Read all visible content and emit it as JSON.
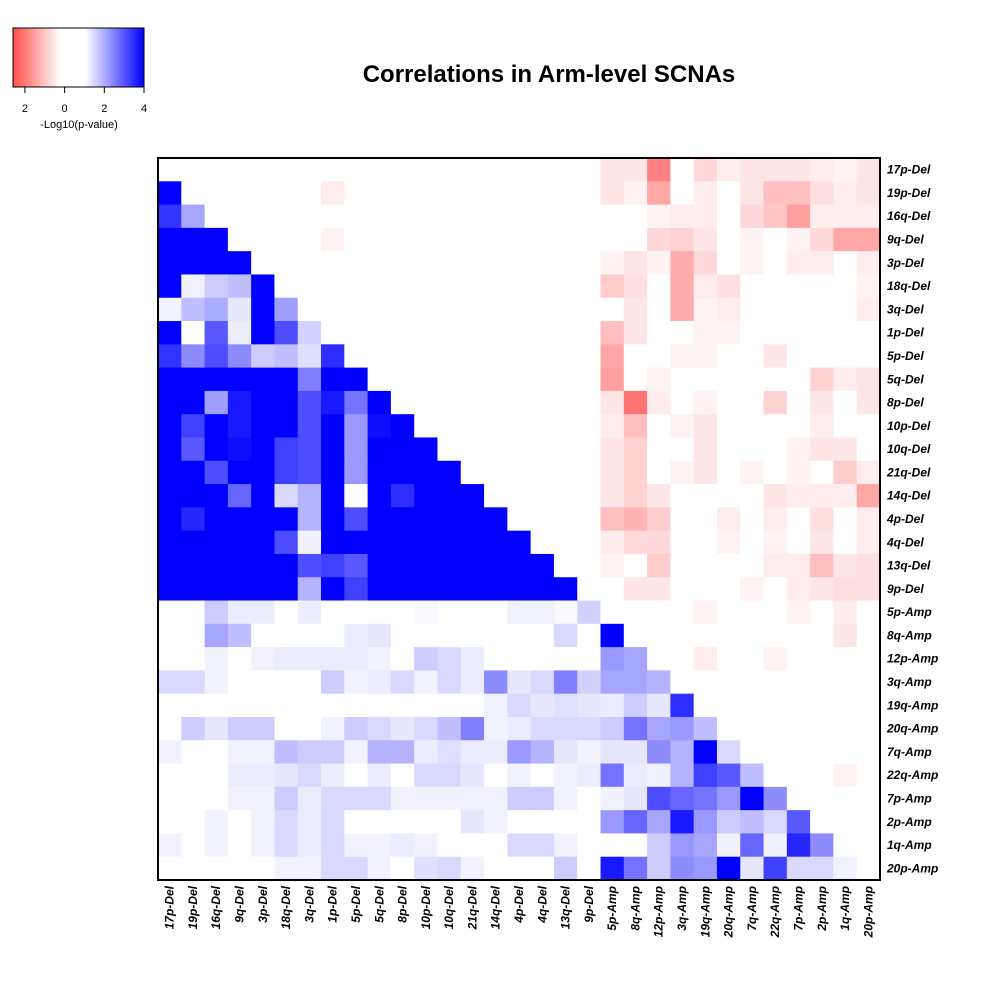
{
  "chart_data": {
    "type": "heatmap",
    "title": "Correlations in Arm-level SCNAs",
    "legend": {
      "title": "-Log10(p-value)",
      "ticks": [
        "2",
        "0",
        "2",
        "4"
      ],
      "scale_range": [
        -4,
        4
      ],
      "colors": {
        "negative": "#ff0000",
        "zero": "#ffffff",
        "positive": "#0000ff"
      }
    },
    "row_labels": [
      "17p-Del",
      "19p-Del",
      "16q-Del",
      "9q-Del",
      "3p-Del",
      "18q-Del",
      "3q-Del",
      "1p-Del",
      "5p-Del",
      "5q-Del",
      "8p-Del",
      "10p-Del",
      "10q-Del",
      "21q-Del",
      "14q-Del",
      "4p-Del",
      "4q-Del",
      "13q-Del",
      "9p-Del",
      "5p-Amp",
      "8q-Amp",
      "12p-Amp",
      "3q-Amp",
      "19q-Amp",
      "20q-Amp",
      "7q-Amp",
      "22q-Amp",
      "7p-Amp",
      "2p-Amp",
      "1q-Amp",
      "20p-Amp"
    ],
    "col_labels": [
      "17p-Del",
      "19p-Del",
      "16q-Del",
      "9q-Del",
      "3p-Del",
      "18q-Del",
      "3q-Del",
      "1p-Del",
      "5p-Del",
      "5q-Del",
      "8p-Del",
      "10p-Del",
      "10q-Del",
      "21q-Del",
      "14q-Del",
      "4p-Del",
      "4q-Del",
      "13q-Del",
      "9p-Del",
      "5p-Amp",
      "8q-Amp",
      "12p-Amp",
      "3q-Amp",
      "19q-Amp",
      "20q-Amp",
      "7q-Amp",
      "22q-Amp",
      "7p-Amp",
      "2p-Amp",
      "1q-Amp",
      "20p-Amp"
    ],
    "values": [
      [
        0,
        0,
        0,
        0,
        0,
        0,
        0,
        0,
        0,
        0,
        0,
        0,
        0,
        0,
        0,
        0,
        0,
        0,
        0,
        -0.4,
        -0.4,
        -2,
        0,
        -0.6,
        -0.3,
        -0.4,
        -0.4,
        -0.4,
        -0.3,
        -0.2,
        -0.4
      ],
      [
        4,
        0,
        0,
        0,
        0,
        0,
        0,
        -0.3,
        0,
        0,
        0,
        0,
        0,
        0,
        0,
        0,
        0,
        0,
        0,
        -0.4,
        -0.2,
        -1.4,
        0,
        -0.3,
        0,
        -0.4,
        -1,
        -1,
        -0.5,
        -0.3,
        -0.4
      ],
      [
        3.2,
        1.4,
        0,
        0,
        0,
        0,
        0,
        0,
        0,
        0,
        0,
        0,
        0,
        0,
        0,
        0,
        0,
        0,
        0,
        0,
        0,
        -0.2,
        -0.3,
        -0.3,
        0,
        -0.6,
        -0.9,
        -1.5,
        -0.3,
        -0.3,
        -0.3
      ],
      [
        4,
        4,
        4,
        0,
        0,
        0,
        0,
        -0.2,
        0,
        0,
        0,
        0,
        0,
        0,
        0,
        0,
        0,
        0,
        0,
        0,
        0,
        -0.6,
        -0.7,
        -0.4,
        0,
        -0.2,
        0,
        -0.2,
        -0.6,
        -1.4,
        -1.4
      ],
      [
        4,
        4,
        4,
        4,
        0,
        0,
        0,
        0,
        0,
        0,
        0,
        0,
        0,
        0,
        0,
        0,
        0,
        0,
        0,
        -0.2,
        -0.4,
        -0.2,
        -1.3,
        -0.6,
        0,
        -0.2,
        0,
        -0.3,
        -0.3,
        0,
        -0.3
      ],
      [
        4,
        0.2,
        0.8,
        1,
        4,
        0,
        0,
        0,
        0,
        0,
        0,
        0,
        0,
        0,
        0,
        0,
        0,
        0,
        0,
        -0.8,
        -0.5,
        0,
        -1.3,
        -0.3,
        -0.5,
        0,
        0,
        0,
        0,
        0,
        -0.2
      ],
      [
        0.2,
        1,
        1.3,
        0.4,
        4,
        1.5,
        0,
        0,
        0,
        0,
        0,
        0,
        0,
        0,
        0,
        0,
        0,
        0,
        0,
        0,
        -0.4,
        0,
        -1.3,
        -0.2,
        -0.3,
        0,
        0,
        0,
        0,
        0,
        -0.3
      ],
      [
        4,
        0,
        2.6,
        0.3,
        4,
        2.8,
        0.7,
        0,
        0,
        0,
        0,
        0,
        0,
        0,
        0,
        0,
        0,
        0,
        0,
        -1,
        -0.4,
        0,
        0,
        -0.2,
        -0.2,
        0,
        0,
        0,
        0,
        0,
        0
      ],
      [
        3.2,
        1.8,
        2.8,
        1.8,
        0.8,
        1,
        0.5,
        3.3,
        0,
        0,
        0,
        0,
        0,
        0,
        0,
        0,
        0,
        0,
        0,
        -1.4,
        0,
        0,
        -0.2,
        -0.2,
        0,
        0,
        -0.4,
        0,
        0,
        0,
        0
      ],
      [
        4,
        4,
        4,
        4,
        4,
        4,
        2,
        4,
        4,
        0,
        0,
        0,
        0,
        0,
        0,
        0,
        0,
        0,
        0,
        -1.5,
        0,
        -0.2,
        0,
        0,
        0,
        0,
        0,
        0,
        -0.7,
        -0.3,
        -0.4
      ],
      [
        4,
        4,
        1.5,
        3.6,
        4,
        4,
        2.8,
        3.6,
        2.2,
        4,
        0,
        0,
        0,
        0,
        0,
        0,
        0,
        0,
        0,
        -0.4,
        -2.2,
        -0.3,
        0,
        -0.2,
        0,
        0,
        -0.7,
        0,
        -0.4,
        0,
        -0.4
      ],
      [
        4,
        3,
        4,
        3.6,
        4,
        4,
        2.8,
        4,
        1.6,
        3.8,
        4,
        0,
        0,
        0,
        0,
        0,
        0,
        0,
        0,
        -0.3,
        -1,
        0,
        -0.2,
        -0.4,
        0,
        0,
        0,
        0,
        -0.3,
        0,
        0
      ],
      [
        4,
        2.6,
        4,
        3.8,
        4,
        3,
        2.8,
        4,
        1.6,
        4,
        4,
        4,
        0,
        0,
        0,
        0,
        0,
        0,
        0,
        -0.4,
        -0.7,
        0,
        0,
        -0.4,
        0,
        0,
        0,
        -0.2,
        -0.4,
        -0.4,
        0
      ],
      [
        4,
        4,
        2.8,
        4,
        4,
        3,
        2.8,
        4,
        1.6,
        4,
        4,
        4,
        4,
        0,
        0,
        0,
        0,
        0,
        0,
        -0.4,
        -0.7,
        0,
        -0.2,
        -0.4,
        0,
        -0.2,
        0,
        -0.2,
        0,
        -0.8,
        -0.3
      ],
      [
        4,
        4,
        4,
        2.4,
        4,
        0.6,
        1.2,
        4,
        0,
        4,
        3.3,
        4,
        4,
        4,
        0,
        0,
        0,
        0,
        0,
        -0.4,
        -0.7,
        -0.4,
        0,
        0,
        0,
        0,
        -0.4,
        -0.3,
        -0.3,
        -0.3,
        -1.4
      ],
      [
        4,
        3.4,
        4,
        4,
        4,
        4,
        1.2,
        4,
        2.8,
        4,
        4,
        4,
        4,
        4,
        4,
        0,
        0,
        0,
        0,
        -1,
        -1.2,
        -0.8,
        0,
        0,
        -0.3,
        0,
        -0.3,
        0,
        -0.5,
        0,
        -0.3
      ],
      [
        4,
        4,
        4,
        4,
        4,
        2.8,
        0.2,
        4,
        4,
        4,
        4,
        4,
        4,
        4,
        4,
        4,
        0,
        0,
        0,
        -0.3,
        -0.6,
        -0.6,
        0,
        0,
        -0.2,
        0,
        -0.2,
        0,
        -0.4,
        0,
        -0.3
      ],
      [
        4,
        4,
        4,
        4,
        4,
        4,
        2.8,
        3,
        2.6,
        4,
        4,
        4,
        4,
        4,
        4,
        4,
        4,
        0,
        0,
        -0.2,
        0,
        -0.8,
        0,
        0,
        0,
        0,
        -0.3,
        -0.3,
        -1,
        -0.4,
        -0.5
      ],
      [
        4,
        4,
        4,
        4,
        4,
        4,
        1.2,
        4,
        3,
        4,
        4,
        4,
        4,
        4,
        4,
        4,
        4,
        4,
        0,
        0,
        -0.4,
        -0.4,
        0,
        0,
        0,
        -0.2,
        0,
        -0.3,
        -0.4,
        -0.5,
        -0.5
      ],
      [
        0,
        0,
        0.8,
        0.3,
        0.3,
        0,
        0.3,
        0,
        0,
        0,
        0,
        0.1,
        0,
        0,
        0,
        0.2,
        0.2,
        0.1,
        0.7,
        0,
        0,
        0,
        0,
        -0.2,
        0,
        0,
        0,
        -0.2,
        0,
        -0.3,
        0
      ],
      [
        0,
        0,
        1.4,
        1,
        0,
        0,
        0,
        0,
        0.3,
        0.4,
        0,
        0,
        0,
        0,
        0,
        0,
        0,
        0.6,
        0,
        4,
        0,
        0,
        0,
        0,
        0,
        0,
        0,
        0,
        0,
        -0.4,
        0
      ],
      [
        0,
        0,
        0.2,
        0,
        0.2,
        0.3,
        0.3,
        0.3,
        0.3,
        0.2,
        0,
        0.8,
        0.6,
        0.3,
        0,
        0,
        0,
        0,
        0,
        1.6,
        1.4,
        0,
        0,
        -0.3,
        0,
        0,
        -0.2,
        0,
        0,
        0,
        0
      ],
      [
        0.6,
        0.6,
        0.2,
        0,
        0,
        0,
        0,
        0.8,
        0.2,
        0.3,
        0.6,
        0.2,
        0.6,
        0.3,
        1.8,
        0.4,
        0.6,
        2,
        0.7,
        1.4,
        1.4,
        1.2,
        0,
        0,
        0,
        0,
        0,
        0,
        0,
        0,
        0
      ],
      [
        0,
        0,
        0,
        0,
        0,
        0,
        0,
        0,
        0,
        0,
        0,
        0,
        0,
        0,
        0.2,
        0.6,
        0.4,
        0.5,
        0.4,
        0.3,
        0.8,
        0.4,
        3.3,
        0,
        0,
        0,
        0,
        0,
        0,
        0,
        0
      ],
      [
        0,
        0.8,
        0.4,
        0.8,
        0.8,
        0,
        0,
        0.2,
        0.8,
        0.6,
        0.4,
        0.6,
        1,
        2,
        0.2,
        0.3,
        0.6,
        0.6,
        0.6,
        0.8,
        2.2,
        1.4,
        1.6,
        1,
        0,
        0,
        0,
        0,
        0,
        0,
        0
      ],
      [
        0.2,
        0,
        0,
        0.2,
        0.2,
        1,
        0.8,
        0.8,
        0.2,
        1.2,
        1.2,
        0.3,
        0.5,
        0.3,
        0.3,
        1.6,
        1.2,
        0.4,
        0.2,
        0.4,
        0.4,
        1.8,
        1.2,
        4,
        0.6,
        0,
        0,
        0,
        0,
        0,
        0
      ],
      [
        0,
        0,
        0,
        0.3,
        0.3,
        0.4,
        0.6,
        0.3,
        0,
        0.3,
        0,
        0.6,
        0.6,
        0.4,
        0,
        0.2,
        0,
        0.2,
        0.3,
        2.2,
        0.3,
        0.2,
        1.2,
        3,
        2.6,
        1,
        0,
        0,
        0,
        -0.2,
        0
      ],
      [
        0,
        0,
        0,
        0.2,
        0.2,
        0.8,
        0.3,
        0.6,
        0.6,
        0.6,
        0.2,
        0.2,
        0.2,
        0.2,
        0.2,
        0.8,
        0.8,
        0.2,
        0,
        0.2,
        0.4,
        2.8,
        2.4,
        2.2,
        1.6,
        4,
        1.8,
        0,
        0,
        0,
        0
      ],
      [
        0,
        0,
        0.2,
        0,
        0.2,
        0.6,
        0.3,
        0.6,
        0,
        0,
        0,
        0,
        0,
        0.4,
        0.2,
        0,
        0,
        0,
        0,
        1.6,
        2.4,
        1.4,
        3.6,
        1.6,
        0.8,
        1,
        0.6,
        2.6,
        0,
        0,
        0
      ],
      [
        0.2,
        0,
        0.2,
        0,
        0.2,
        0.6,
        0.3,
        0.6,
        0.2,
        0.2,
        0.3,
        0.2,
        0,
        0,
        0,
        0.6,
        0.6,
        0.2,
        0,
        0,
        0,
        0.8,
        1.6,
        1.4,
        0.2,
        2.4,
        0.2,
        3.4,
        1.8,
        0,
        0
      ],
      [
        0,
        0,
        0,
        0,
        0,
        0.2,
        0.2,
        0.6,
        0.6,
        0.2,
        0,
        0.5,
        0.6,
        0.2,
        0,
        0,
        0,
        0.8,
        0,
        3.6,
        2.2,
        0.8,
        1.8,
        1.6,
        4,
        0.4,
        3,
        0.6,
        0.6,
        0.2,
        0
      ]
    ]
  }
}
